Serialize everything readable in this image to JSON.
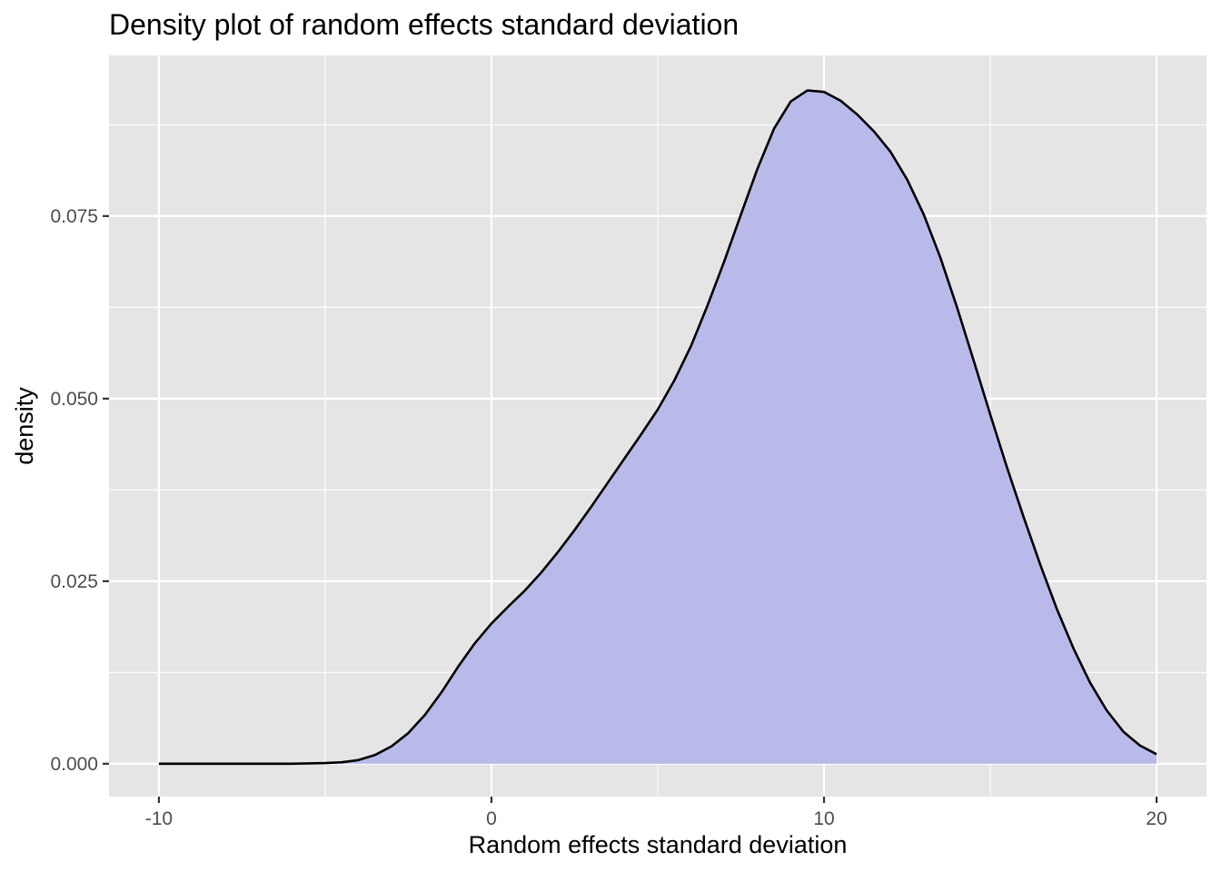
{
  "chart_data": {
    "type": "area",
    "title": "Density plot of random effects standard deviation",
    "xlabel": "Random effects standard deviation",
    "ylabel": "density",
    "xlim": [
      -11.5,
      21.5
    ],
    "ylim": [
      -0.0045,
      0.097
    ],
    "x_ticks": [
      -10,
      0,
      10,
      20
    ],
    "x_tick_labels": [
      "-10",
      "0",
      "10",
      "20"
    ],
    "y_ticks": [
      0.0,
      0.025,
      0.05,
      0.075
    ],
    "y_tick_labels": [
      "0.000",
      "0.025",
      "0.050",
      "0.075"
    ],
    "x_minor_ticks": [
      -5,
      5,
      15
    ],
    "y_minor_ticks": [
      0.0125,
      0.0375,
      0.0625,
      0.0875
    ],
    "grid": true,
    "fill_color": "#b6b7ea",
    "line_color": "#000000",
    "panel_background": "#e5e5e5",
    "series": [
      {
        "x": [
          -10,
          -8,
          -6,
          -5,
          -4.5,
          -4,
          -3.5,
          -3,
          -2.5,
          -2,
          -1.5,
          -1,
          -0.5,
          0,
          0.5,
          1,
          1.5,
          2,
          2.5,
          3,
          3.5,
          4,
          4.5,
          5,
          5.5,
          6,
          6.5,
          7,
          7.5,
          8,
          8.5,
          9,
          9.5,
          10,
          10.5,
          11,
          11.5,
          12,
          12.5,
          13,
          13.5,
          14,
          14.5,
          15,
          15.5,
          16,
          16.5,
          17,
          17.5,
          18,
          18.5,
          19,
          19.5,
          20
        ],
        "y": [
          0.0,
          0.0,
          0.0,
          0.0001,
          0.0002,
          0.0005,
          0.0012,
          0.0024,
          0.0042,
          0.0067,
          0.0098,
          0.0133,
          0.0165,
          0.0192,
          0.0215,
          0.0237,
          0.0262,
          0.029,
          0.032,
          0.0352,
          0.0385,
          0.0418,
          0.0451,
          0.0485,
          0.0525,
          0.0572,
          0.0628,
          0.0688,
          0.0752,
          0.0815,
          0.087,
          0.0907,
          0.0922,
          0.092,
          0.0908,
          0.0889,
          0.0866,
          0.0838,
          0.08,
          0.0752,
          0.0693,
          0.0625,
          0.0552,
          0.0478,
          0.0406,
          0.0338,
          0.0273,
          0.0212,
          0.0158,
          0.0111,
          0.0073,
          0.0044,
          0.0025,
          0.0013
        ]
      }
    ]
  }
}
